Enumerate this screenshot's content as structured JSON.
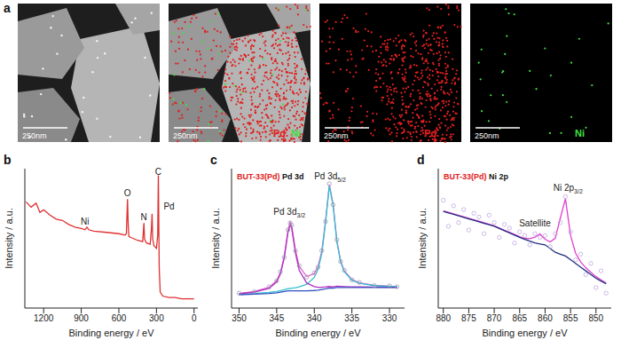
{
  "panel_a": {
    "label": "a",
    "images": [
      {
        "scale_bar": "250nm"
      },
      {
        "scale_bar": "250nm",
        "legend": [
          {
            "text": "Pd",
            "color": "#e02020"
          },
          {
            "text": "Ni",
            "color": "#40e040"
          }
        ]
      },
      {
        "scale_bar": "250nm",
        "legend": [
          {
            "text": "Pd",
            "color": "#e02020"
          }
        ]
      },
      {
        "scale_bar": "250nm",
        "legend": [
          {
            "text": "Ni",
            "color": "#40e040"
          }
        ]
      }
    ]
  },
  "chart_data": [
    {
      "type": "line",
      "panel": "b",
      "x_label": "Binding energy / eV",
      "y_label": "Intensity / a.u.",
      "tick_labels": "x",
      "xlim": [
        1350,
        -30
      ],
      "xticks": [
        1200,
        900,
        600,
        300,
        0
      ],
      "ylim": [
        0,
        105
      ],
      "x": [
        1340,
        1300,
        1260,
        1230,
        1200,
        1150,
        1100,
        1050,
        1000,
        950,
        900,
        870,
        855,
        840,
        800,
        700,
        600,
        550,
        540,
        531,
        525,
        520,
        500,
        450,
        410,
        400,
        395,
        380,
        350,
        340,
        335,
        330,
        320,
        300,
        290,
        285,
        282,
        278,
        270,
        250,
        200,
        150,
        100,
        50,
        0
      ],
      "series": [
        {
          "color": "#e03030",
          "line_style": "solid",
          "values": [
            80,
            76,
            79,
            72,
            74,
            70,
            67,
            66,
            63,
            61,
            60,
            59,
            61,
            59,
            58,
            57,
            56,
            55,
            56,
            82,
            62,
            54,
            53,
            51,
            50,
            64,
            52,
            49,
            48,
            60,
            71,
            52,
            47,
            45,
            55,
            100,
            70,
            30,
            12,
            9,
            8,
            8,
            7,
            7,
            7
          ]
        }
      ],
      "annotations": [
        {
          "text": "Ni",
          "x": 870,
          "y": 63
        },
        {
          "text": "O",
          "x": 531,
          "y": 84
        },
        {
          "text": "N",
          "x": 400,
          "y": 66
        },
        {
          "text": "C",
          "x": 285,
          "y": 100
        },
        {
          "text": "Pd",
          "x": 200,
          "y": 74
        }
      ]
    },
    {
      "type": "line",
      "panel": "c",
      "title": "BUT-33(Pd)",
      "subtitle": "Pd 3d",
      "x_label": "Binding energy / eV",
      "y_label": "Intensity / a.u.",
      "tick_labels": "x",
      "xlim": [
        351,
        328
      ],
      "xticks": [
        350,
        345,
        340,
        335,
        330
      ],
      "ylim": [
        0,
        105
      ],
      "x": [
        350,
        348,
        346,
        345,
        344.5,
        344,
        343.5,
        343.2,
        343,
        342.5,
        342,
        341,
        340,
        339.5,
        339,
        338.5,
        338,
        337.5,
        337,
        336.5,
        336,
        335,
        334,
        332,
        330,
        329
      ],
      "series": [
        {
          "color": "#9a9aae",
          "marker": "circle",
          "line_style": "none",
          "values": [
            11.2,
            12.2,
            15.9,
            20.4,
            27.3,
            38.2,
            58.9,
            64.1,
            62.4,
            43.1,
            31.8,
            23.3,
            26.5,
            30.8,
            43.3,
            65.2,
            93.6,
            77.8,
            51.4,
            35.1,
            28.4,
            21.2,
            19.3,
            16.9,
            16.7,
            16.0
          ]
        },
        {
          "color": "#e060d0",
          "line_style": "solid",
          "values": [
            11.0,
            12.4,
            15.6,
            20.7,
            26.8,
            38.8,
            58.4,
            64.7,
            61.9,
            43.6,
            31.3,
            23.7,
            26,
            31.3,
            42.7,
            65.9,
            93,
            78.4,
            50.8,
            35.5,
            28,
            21.5,
            19,
            17.2,
            16.5,
            16.2
          ]
        },
        {
          "color": "#30c0d0",
          "line_style": "solid",
          "values": [
            10.3,
            11.0,
            11.8,
            12.5,
            13.1,
            13.8,
            14.6,
            14.7,
            14.9,
            15.3,
            15.9,
            17.9,
            23.1,
            29.1,
            41,
            64.5,
            91.8,
            77.4,
            49.9,
            34.7,
            27.3,
            21,
            18.6,
            16.9,
            16.3,
            16.1
          ]
        },
        {
          "color": "#b030c0",
          "line_style": "solid",
          "values": [
            10.7,
            11.9,
            14.8,
            19.7,
            25.7,
            37.5,
            56.8,
            63,
            60,
            41.3,
            28.4,
            18.8,
            16.1,
            15.7,
            15.7,
            15.9,
            16.2,
            16,
            16.4,
            16.3,
            16.2,
            16,
            15.9,
            15.8,
            15.7,
            15.6
          ]
        },
        {
          "color": "#3050c0",
          "line_style": "solid",
          "values": [
            10,
            10.5,
            11,
            11.5,
            12,
            12.5,
            13,
            13,
            13,
            13,
            13,
            13,
            13.2,
            13.5,
            14,
            14.5,
            15,
            15,
            15.5,
            15.5,
            15.5,
            15.5,
            15.5,
            15.5,
            15.5,
            15.5
          ]
        }
      ],
      "annotations": [
        {
          "text": "Pd 3d3/2",
          "x": 343.3,
          "y": 70
        },
        {
          "text": "Pd 3d5/2",
          "x": 337.9,
          "y": 97
        }
      ]
    },
    {
      "type": "line",
      "panel": "d",
      "title": "BUT-33(Pd)",
      "subtitle": "Ni 2p",
      "x_label": "Binding energy / eV",
      "y_label": "Intensity / a.u.",
      "tick_labels": "x",
      "xlim": [
        881,
        847
      ],
      "xticks": [
        880,
        875,
        870,
        865,
        860,
        855,
        850
      ],
      "ylim": [
        20,
        95
      ],
      "x": [
        880,
        879,
        878,
        877,
        876,
        875,
        874,
        873,
        872,
        871,
        870,
        869,
        868,
        867,
        866,
        865,
        864,
        863,
        862,
        861,
        860,
        859,
        858,
        857,
        856,
        855,
        854,
        853,
        852,
        851,
        850,
        849,
        848
      ],
      "series": [
        {
          "color": "#c0a8e0",
          "marker": "circle",
          "line_style": "none",
          "values": [
            78,
            64,
            75,
            66,
            73,
            62,
            71,
            69,
            60,
            70,
            66,
            58,
            65,
            63,
            55,
            61,
            59,
            54,
            60,
            58,
            59,
            53,
            60,
            66,
            80,
            61,
            46,
            49,
            38,
            44,
            31,
            40,
            28
          ]
        },
        {
          "color": "#e040d0",
          "line_style": "solid",
          "values": [
            72.3,
            71.5,
            70.7,
            69.9,
            69.1,
            68.3,
            67.5,
            66.7,
            65.9,
            65.1,
            64.3,
            63.1,
            61.9,
            60.8,
            59.6,
            58.4,
            57.5,
            57.3,
            58.1,
            59.8,
            57,
            55.6,
            57.6,
            68.5,
            78.8,
            59.1,
            49.5,
            44.8,
            41.7,
            39.2,
            36.9,
            35.2,
            33.5
          ]
        },
        {
          "color": "#203080",
          "line_style": "solid",
          "values": [
            72,
            71.2,
            70.4,
            69.6,
            68.8,
            68,
            67.2,
            66.4,
            65.6,
            64.8,
            64,
            62.8,
            61.6,
            60.4,
            59.2,
            58,
            57,
            56,
            55,
            54.5,
            54,
            52,
            50,
            49,
            48,
            46,
            44,
            42,
            40,
            38,
            36,
            34.5,
            33
          ]
        }
      ],
      "annotations": [
        {
          "text": "Satellite",
          "x": 862,
          "y": 64
        },
        {
          "text": "Ni 2p3/2",
          "x": 855.5,
          "y": 83
        }
      ]
    }
  ]
}
